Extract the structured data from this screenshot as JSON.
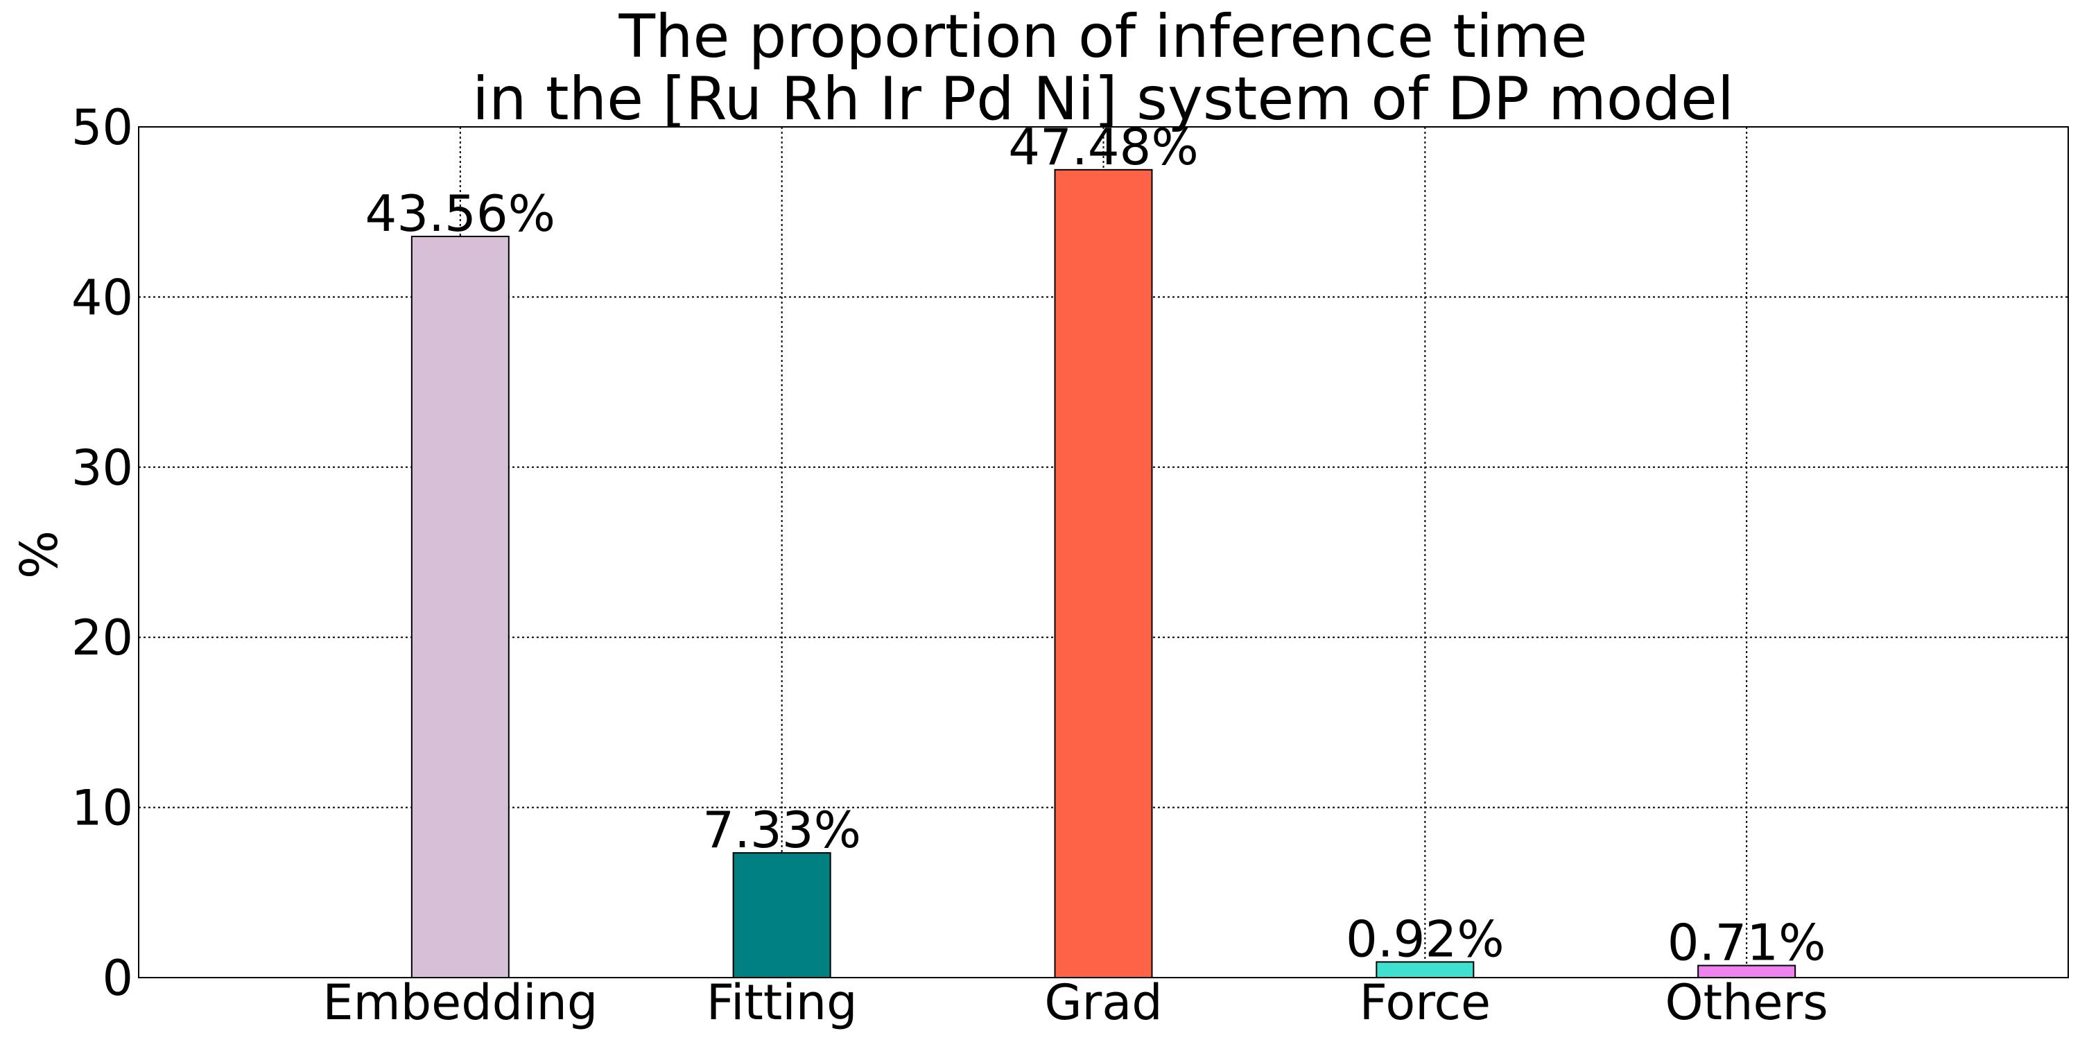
{
  "chart_data": {
    "type": "bar",
    "title": "The proportion of inference time\nin the [Ru Rh Ir Pd Ni] system of DP model",
    "xlabel": "",
    "ylabel": "%",
    "ylim": [
      0,
      50
    ],
    "yticks": [
      0,
      10,
      20,
      30,
      40,
      50
    ],
    "categories": [
      "Embedding",
      "Fitting",
      "Grad",
      "Force",
      "Others"
    ],
    "values": [
      43.56,
      7.33,
      47.48,
      0.92,
      0.71
    ],
    "data_labels": [
      "43.56%",
      "7.33%",
      "47.48%",
      "0.92%",
      "0.71%"
    ],
    "colors": [
      "#d8bfd8",
      "#008080",
      "#ff6347",
      "#40e0d0",
      "#ee82ee"
    ],
    "grid": true,
    "legend": "none"
  }
}
